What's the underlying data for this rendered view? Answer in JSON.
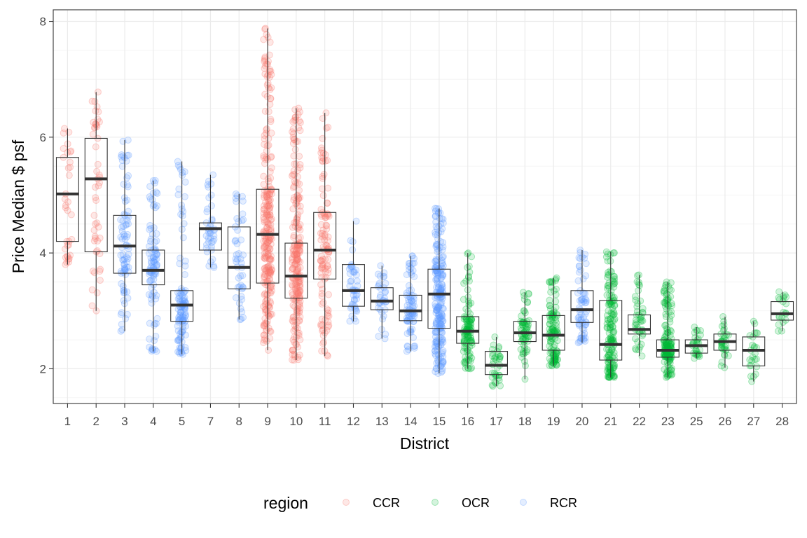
{
  "chart_data": {
    "type": "boxplot",
    "xlabel": "District",
    "ylabel": "Price Median $ psf",
    "ylim": [
      1.4,
      8.2
    ],
    "yticks": [
      2,
      4,
      6,
      8
    ],
    "grid": true,
    "legend": {
      "title": "region",
      "placement": "bottom",
      "entries": [
        {
          "name": "CCR",
          "color": "#F8766D"
        },
        {
          "name": "OCR",
          "color": "#00BA38"
        },
        {
          "name": "RCR",
          "color": "#619CFF"
        }
      ]
    },
    "boxes": [
      {
        "district": "1",
        "region": "CCR",
        "min": 3.8,
        "q1": 4.2,
        "median": 5.02,
        "q3": 5.65,
        "max": 6.15,
        "n": 30
      },
      {
        "district": "2",
        "region": "CCR",
        "min": 3.0,
        "q1": 4.02,
        "median": 5.28,
        "q3": 5.98,
        "max": 6.78,
        "n": 45
      },
      {
        "district": "3",
        "region": "RCR",
        "min": 2.65,
        "q1": 3.65,
        "median": 4.12,
        "q3": 4.65,
        "max": 5.95,
        "n": 80
      },
      {
        "district": "4",
        "region": "RCR",
        "min": 2.3,
        "q1": 3.45,
        "median": 3.7,
        "q3": 4.05,
        "max": 5.25,
        "n": 90
      },
      {
        "district": "5",
        "region": "RCR",
        "min": 2.25,
        "q1": 2.82,
        "median": 3.1,
        "q3": 3.35,
        "max": 5.58,
        "n": 110
      },
      {
        "district": "7",
        "region": "RCR",
        "min": 3.75,
        "q1": 4.05,
        "median": 4.42,
        "q3": 4.52,
        "max": 5.35,
        "n": 35
      },
      {
        "district": "8",
        "region": "RCR",
        "min": 2.85,
        "q1": 3.38,
        "median": 3.75,
        "q3": 4.45,
        "max": 5.02,
        "n": 40
      },
      {
        "district": "9",
        "region": "CCR",
        "min": 2.32,
        "q1": 3.48,
        "median": 4.32,
        "q3": 5.1,
        "max": 7.88,
        "n": 260
      },
      {
        "district": "10",
        "region": "CCR",
        "min": 2.15,
        "q1": 3.22,
        "median": 3.6,
        "q3": 4.17,
        "max": 6.5,
        "n": 230
      },
      {
        "district": "11",
        "region": "CCR",
        "min": 2.22,
        "q1": 3.55,
        "median": 4.05,
        "q3": 4.7,
        "max": 6.42,
        "n": 110
      },
      {
        "district": "12",
        "region": "RCR",
        "min": 2.82,
        "q1": 3.08,
        "median": 3.35,
        "q3": 3.8,
        "max": 4.55,
        "n": 40
      },
      {
        "district": "13",
        "region": "RCR",
        "min": 2.52,
        "q1": 3.02,
        "median": 3.17,
        "q3": 3.4,
        "max": 3.78,
        "n": 30
      },
      {
        "district": "14",
        "region": "RCR",
        "min": 2.3,
        "q1": 2.83,
        "median": 3.0,
        "q3": 3.27,
        "max": 3.95,
        "n": 70
      },
      {
        "district": "15",
        "region": "RCR",
        "min": 1.92,
        "q1": 2.7,
        "median": 3.29,
        "q3": 3.72,
        "max": 4.77,
        "n": 220
      },
      {
        "district": "16",
        "region": "OCR",
        "min": 2.0,
        "q1": 2.44,
        "median": 2.65,
        "q3": 2.9,
        "max": 4.0,
        "n": 110
      },
      {
        "district": "17",
        "region": "OCR",
        "min": 1.7,
        "q1": 1.9,
        "median": 2.06,
        "q3": 2.3,
        "max": 2.55,
        "n": 30
      },
      {
        "district": "18",
        "region": "OCR",
        "min": 1.82,
        "q1": 2.47,
        "median": 2.62,
        "q3": 2.82,
        "max": 3.32,
        "n": 60
      },
      {
        "district": "19",
        "region": "OCR",
        "min": 2.05,
        "q1": 2.32,
        "median": 2.58,
        "q3": 2.92,
        "max": 3.57,
        "n": 110
      },
      {
        "district": "20",
        "region": "RCR",
        "min": 2.45,
        "q1": 2.8,
        "median": 3.02,
        "q3": 3.35,
        "max": 4.05,
        "n": 60
      },
      {
        "district": "21",
        "region": "OCR",
        "min": 1.85,
        "q1": 2.15,
        "median": 2.42,
        "q3": 3.18,
        "max": 4.02,
        "n": 150
      },
      {
        "district": "22",
        "region": "OCR",
        "min": 2.22,
        "q1": 2.6,
        "median": 2.68,
        "q3": 2.93,
        "max": 3.62,
        "n": 40
      },
      {
        "district": "23",
        "region": "OCR",
        "min": 1.85,
        "q1": 2.2,
        "median": 2.32,
        "q3": 2.5,
        "max": 3.5,
        "n": 150
      },
      {
        "district": "25",
        "region": "OCR",
        "min": 2.18,
        "q1": 2.27,
        "median": 2.4,
        "q3": 2.5,
        "max": 2.72,
        "n": 25
      },
      {
        "district": "26",
        "region": "OCR",
        "min": 2.02,
        "q1": 2.32,
        "median": 2.47,
        "q3": 2.6,
        "max": 2.9,
        "n": 30
      },
      {
        "district": "27",
        "region": "OCR",
        "min": 1.78,
        "q1": 2.05,
        "median": 2.32,
        "q3": 2.55,
        "max": 2.82,
        "n": 20
      },
      {
        "district": "28",
        "region": "OCR",
        "min": 2.65,
        "q1": 2.84,
        "median": 2.95,
        "q3": 3.16,
        "max": 3.33,
        "n": 15
      }
    ]
  }
}
